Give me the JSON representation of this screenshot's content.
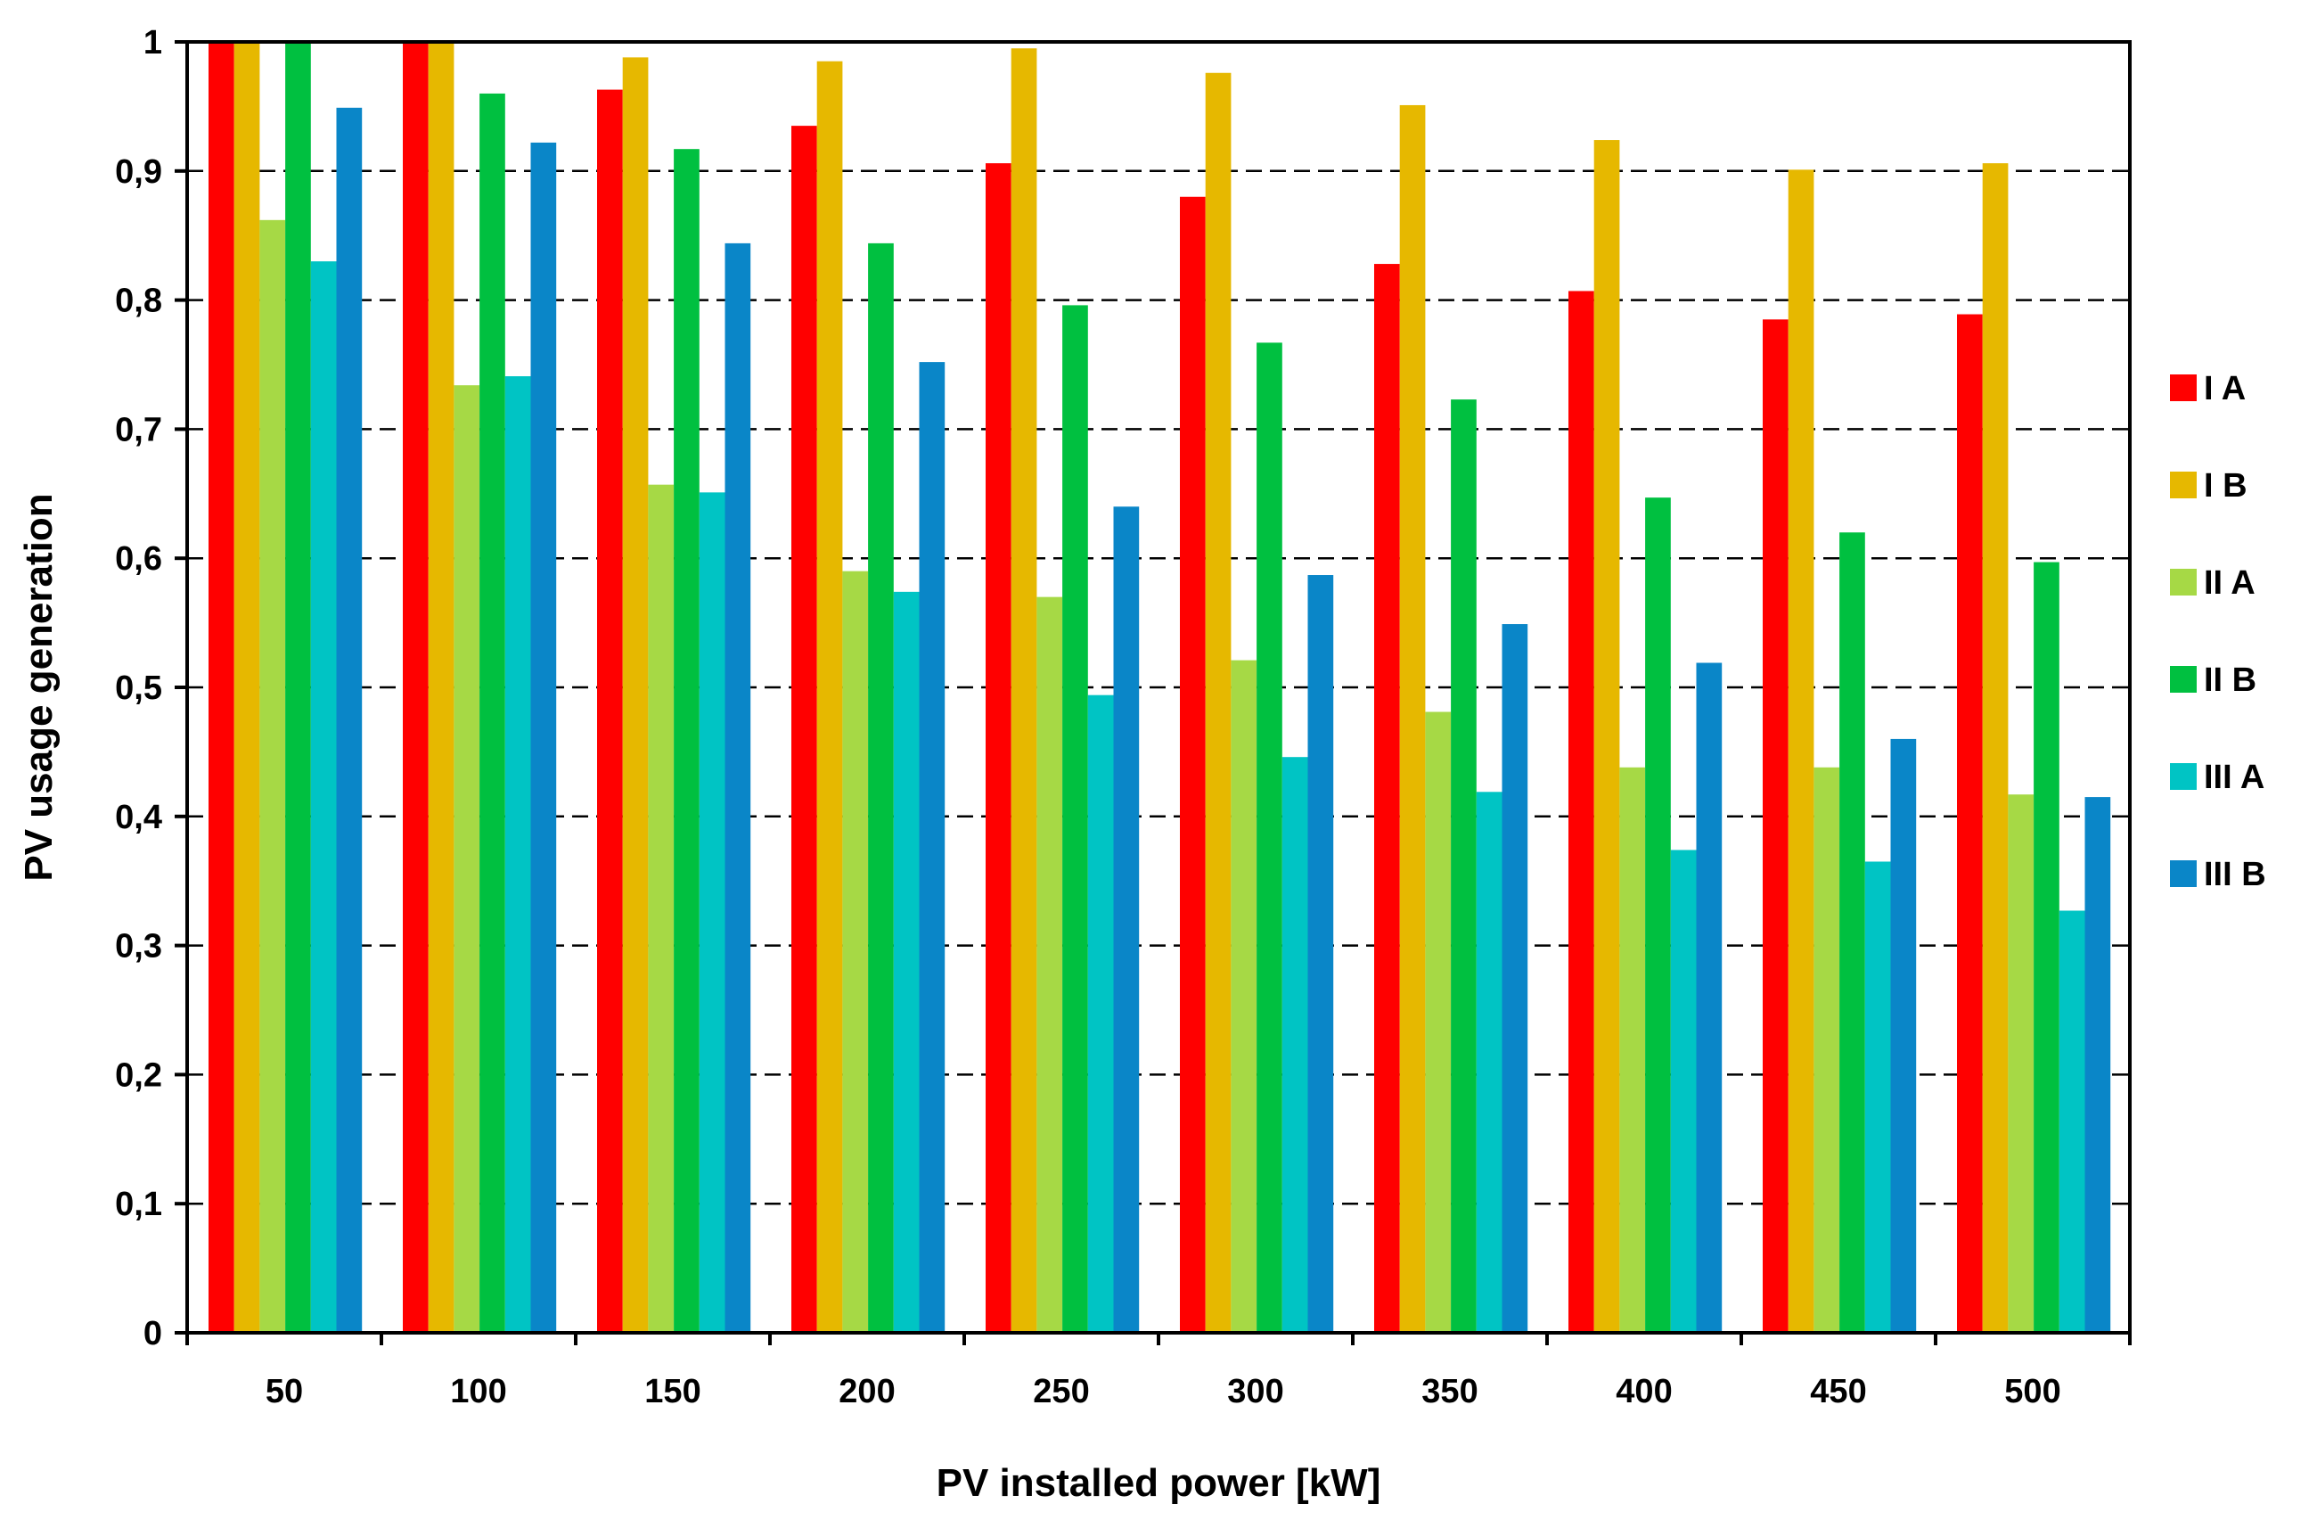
{
  "chart_data": {
    "type": "bar",
    "title": "",
    "xlabel": "PV installed power [kW]",
    "ylabel": "PV usage generation",
    "ylim": [
      0,
      1
    ],
    "yticks": [
      "0",
      "0,1",
      "0,2",
      "0,3",
      "0,4",
      "0,5",
      "0,6",
      "0,7",
      "0,8",
      "0,9",
      "1"
    ],
    "grid": "horizontal dashed",
    "legend_position": "right",
    "categories": [
      "50",
      "100",
      "150",
      "200",
      "250",
      "300",
      "350",
      "400",
      "450",
      "500"
    ],
    "series": [
      {
        "name": "I A",
        "color": "#ff0000",
        "values": [
          1.0,
          1.0,
          0.963,
          0.935,
          0.906,
          0.88,
          0.828,
          0.807,
          0.785,
          0.789
        ]
      },
      {
        "name": "I B",
        "color": "#e6b800",
        "values": [
          1.0,
          1.0,
          0.988,
          0.985,
          0.995,
          0.976,
          0.951,
          0.924,
          0.901,
          0.906
        ]
      },
      {
        "name": "II A",
        "color": "#a6d945",
        "values": [
          0.862,
          0.734,
          0.657,
          0.59,
          0.57,
          0.521,
          0.481,
          0.438,
          0.438,
          0.417
        ]
      },
      {
        "name": "II B",
        "color": "#00c040",
        "values": [
          1.0,
          0.96,
          0.917,
          0.844,
          0.796,
          0.767,
          0.723,
          0.647,
          0.62,
          0.597
        ]
      },
      {
        "name": "III A",
        "color": "#00c4c4",
        "values": [
          0.83,
          0.741,
          0.651,
          0.574,
          0.494,
          0.446,
          0.419,
          0.374,
          0.365,
          0.327
        ]
      },
      {
        "name": "III B",
        "color": "#0a86c8",
        "values": [
          0.949,
          0.922,
          0.844,
          0.752,
          0.64,
          0.587,
          0.549,
          0.519,
          0.46,
          0.415
        ]
      }
    ]
  }
}
